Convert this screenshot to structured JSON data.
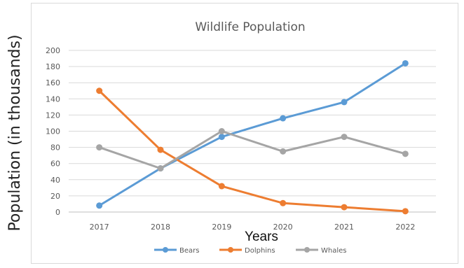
{
  "chart_data": {
    "type": "line",
    "title": "Wildlife Population",
    "xlabel": "Years",
    "ylabel": "Population (in thousands)",
    "categories": [
      "2017",
      "2018",
      "2019",
      "2020",
      "2021",
      "2022"
    ],
    "ylim": [
      0,
      200
    ],
    "yticks": [
      0,
      20,
      40,
      60,
      80,
      100,
      120,
      140,
      160,
      180,
      200
    ],
    "grid": true,
    "legend_position": "bottom",
    "series": [
      {
        "name": "Bears",
        "color": "#5b9bd5",
        "values": [
          8,
          54,
          93,
          116,
          136,
          184
        ]
      },
      {
        "name": "Dolphins",
        "color": "#ed7d31",
        "values": [
          150,
          77,
          32,
          11,
          6,
          1
        ]
      },
      {
        "name": "Whales",
        "color": "#a5a5a5",
        "values": [
          80,
          54,
          100,
          75,
          93,
          72
        ]
      }
    ]
  }
}
